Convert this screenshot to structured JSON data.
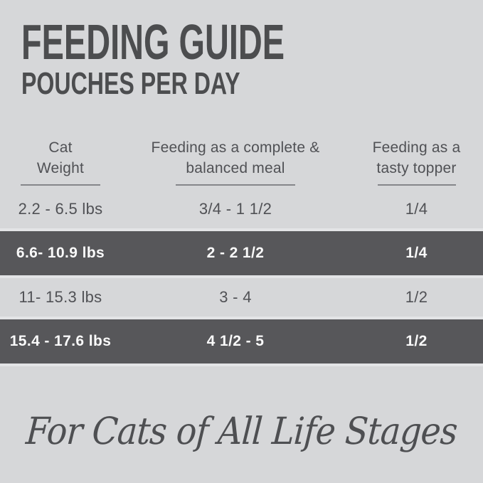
{
  "header": {
    "title": "FEEDING GUIDE",
    "subtitle": "POUCHES PER DAY"
  },
  "table": {
    "columns": [
      {
        "line1": "Cat",
        "line2": "Weight"
      },
      {
        "line1": "Feeding as a complete &",
        "line2": "balanced meal"
      },
      {
        "line1": "Feeding as a",
        "line2": "tasty topper"
      }
    ],
    "rows": [
      {
        "weight": "2.2 - 6.5 lbs",
        "meal": "3/4 - 1 1/2",
        "topper": "1/4",
        "highlighted": false
      },
      {
        "weight": "6.6- 10.9 lbs",
        "meal": "2 - 2 1/2",
        "topper": "1/4",
        "highlighted": true
      },
      {
        "weight": "11- 15.3 lbs",
        "meal": "3 - 4",
        "topper": "1/2",
        "highlighted": false
      },
      {
        "weight": "15.4 - 17.6 lbs",
        "meal": "4 1/2 - 5",
        "topper": "1/2",
        "highlighted": true
      }
    ]
  },
  "footer": {
    "tagline": "For Cats of All Life Stages"
  },
  "colors": {
    "background": "#d6d7d9",
    "highlight_row": "#57575a",
    "highlight_text": "#fafafa",
    "title_text": "#4c4d4f",
    "table_text": "#505155",
    "underline": "#85868a",
    "halo": "#e3e4e6",
    "tagline_text": "#4e4f52"
  }
}
